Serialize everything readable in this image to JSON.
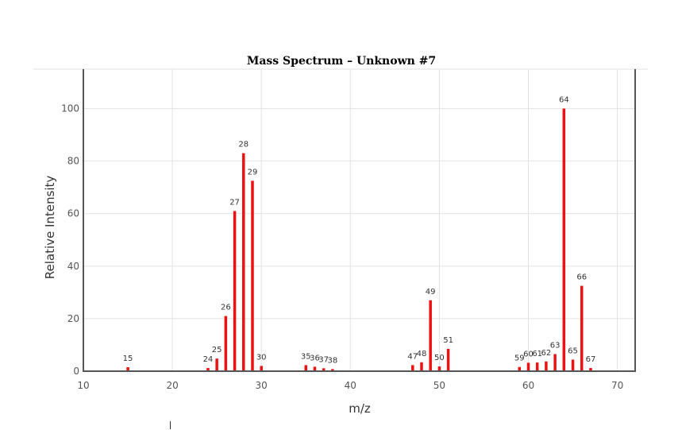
{
  "chart_data": {
    "type": "bar",
    "title": "Mass Spectrum – Unknown #7",
    "xlabel": "m/z",
    "ylabel": "Relative Intensity",
    "xlim": [
      10,
      72
    ],
    "ylim": [
      0,
      115
    ],
    "xticks": [
      10,
      20,
      30,
      40,
      50,
      60,
      70
    ],
    "yticks": [
      0,
      20,
      40,
      60,
      80,
      100
    ],
    "grid": true,
    "color": "#ee1111",
    "peaks": [
      {
        "mz": 15,
        "label": "15",
        "intensity": 1.5
      },
      {
        "mz": 24,
        "label": "24",
        "intensity": 1.2
      },
      {
        "mz": 25,
        "label": "25",
        "intensity": 4.8
      },
      {
        "mz": 26,
        "label": "26",
        "intensity": 21
      },
      {
        "mz": 27,
        "label": "27",
        "intensity": 61
      },
      {
        "mz": 28,
        "label": "28",
        "intensity": 83
      },
      {
        "mz": 29,
        "label": "29",
        "intensity": 72.5
      },
      {
        "mz": 30,
        "label": "30",
        "intensity": 2
      },
      {
        "mz": 35,
        "label": "35",
        "intensity": 2.3
      },
      {
        "mz": 36,
        "label": "36",
        "intensity": 1.7
      },
      {
        "mz": 37,
        "label": "37",
        "intensity": 1.1
      },
      {
        "mz": 38,
        "label": "38",
        "intensity": 0.8
      },
      {
        "mz": 47,
        "label": "47",
        "intensity": 2.3
      },
      {
        "mz": 48,
        "label": "48",
        "intensity": 3.4
      },
      {
        "mz": 49,
        "label": "49",
        "intensity": 27
      },
      {
        "mz": 50,
        "label": "50",
        "intensity": 1.8
      },
      {
        "mz": 51,
        "label": "51",
        "intensity": 8.5
      },
      {
        "mz": 59,
        "label": "59",
        "intensity": 1.6
      },
      {
        "mz": 60,
        "label": "60",
        "intensity": 3.2
      },
      {
        "mz": 61,
        "label": "61",
        "intensity": 3.3
      },
      {
        "mz": 62,
        "label": "62",
        "intensity": 3.7
      },
      {
        "mz": 63,
        "label": "63",
        "intensity": 6.5
      },
      {
        "mz": 64,
        "label": "64",
        "intensity": 100
      },
      {
        "mz": 65,
        "label": "65",
        "intensity": 4.4
      },
      {
        "mz": 66,
        "label": "66",
        "intensity": 32.5
      },
      {
        "mz": 67,
        "label": "67",
        "intensity": 1.2
      }
    ]
  }
}
